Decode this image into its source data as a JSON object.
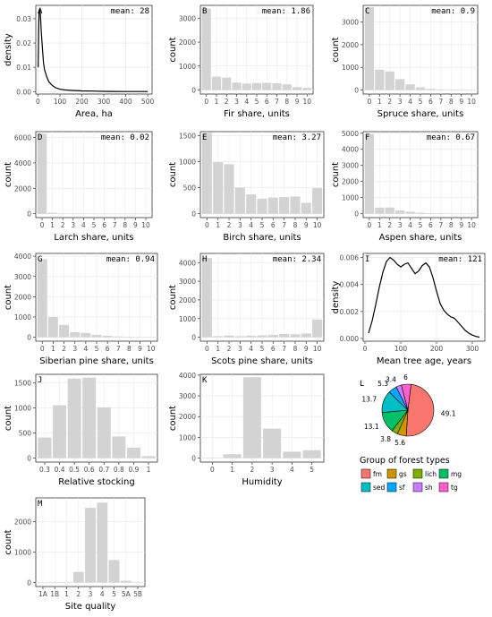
{
  "colors": {
    "bar": "#d3d3d3",
    "line": "#000000",
    "grid": "#ebebeb",
    "axis_text": "#4d4d4d",
    "pie": {
      "fm": "#f8766d",
      "gs": "#cd9600",
      "lich": "#7cae00",
      "mg": "#00be67",
      "sed": "#00bfc4",
      "sf": "#00a9ff",
      "sh": "#c77cff",
      "tg": "#ff61cc"
    }
  },
  "chart_data": [
    {
      "id": "A",
      "type": "line",
      "panel_label": "A",
      "annotation": "mean: 28",
      "xlabel": "Area, ha",
      "ylabel": "density",
      "xlim": [
        -10,
        520
      ],
      "ylim": [
        -0.001,
        0.0355
      ],
      "xticks": [
        "0",
        "100",
        "200",
        "300",
        "400",
        "500"
      ],
      "xtick_values": [
        0,
        100,
        200,
        300,
        400,
        500
      ],
      "yticks": [
        "0.00",
        "0.01",
        "0.02",
        "0.03"
      ],
      "ytick_values": [
        0,
        0.01,
        0.02,
        0.03
      ],
      "x": [
        1,
        3,
        5,
        8,
        10,
        12,
        15,
        20,
        25,
        30,
        40,
        50,
        60,
        70,
        80,
        100,
        120,
        150,
        200,
        250,
        300,
        400,
        500
      ],
      "y": [
        0.01,
        0.025,
        0.033,
        0.034,
        0.033,
        0.03,
        0.025,
        0.018,
        0.012,
        0.009,
        0.006,
        0.004,
        0.003,
        0.0022,
        0.0016,
        0.001,
        0.0007,
        0.0005,
        0.0003,
        0.0002,
        0.00012,
        5e-05,
        2e-05
      ]
    },
    {
      "id": "B",
      "type": "bar",
      "panel_label": "B",
      "annotation": "mean: 1.86",
      "xlabel": "Fir share, units",
      "ylabel": "count",
      "categories": [
        "0",
        "1",
        "2",
        "3",
        "4",
        "5",
        "6",
        "7",
        "8",
        "9",
        "10"
      ],
      "values": [
        3400,
        560,
        520,
        310,
        270,
        290,
        300,
        280,
        240,
        120,
        90
      ],
      "ylim": [
        0,
        3500
      ],
      "yticks": [
        "0",
        "1000",
        "2000",
        "3000"
      ],
      "ytick_values": [
        0,
        1000,
        2000,
        3000
      ]
    },
    {
      "id": "C",
      "type": "bar",
      "panel_label": "C",
      "annotation": "mean: 0.9",
      "xlabel": "Spruce share, units",
      "ylabel": "count",
      "categories": [
        "0",
        "1",
        "2",
        "3",
        "4",
        "5",
        "6",
        "7",
        "8",
        "9",
        "10"
      ],
      "values": [
        3650,
        900,
        820,
        480,
        250,
        120,
        50,
        25,
        15,
        10,
        5
      ],
      "ylim": [
        0,
        3700
      ],
      "yticks": [
        "0",
        "1000",
        "2000",
        "3000"
      ],
      "ytick_values": [
        0,
        1000,
        2000,
        3000
      ]
    },
    {
      "id": "D",
      "type": "bar",
      "panel_label": "D",
      "annotation": "mean: 0.02",
      "xlabel": "Larch share, units",
      "ylabel": "count",
      "categories": [
        "0",
        "1",
        "2",
        "3",
        "4",
        "5",
        "6",
        "7",
        "8",
        "9",
        "10"
      ],
      "values": [
        6300,
        80,
        20,
        10,
        5,
        3,
        2,
        1,
        1,
        1,
        1
      ],
      "ylim": [
        0,
        6400
      ],
      "yticks": [
        "0",
        "2000",
        "4000",
        "6000"
      ],
      "ytick_values": [
        0,
        2000,
        4000,
        6000
      ]
    },
    {
      "id": "E",
      "type": "bar",
      "panel_label": "E",
      "annotation": "mean: 3.27",
      "xlabel": "Birch share, units",
      "ylabel": "count",
      "categories": [
        "0",
        "1",
        "2",
        "3",
        "4",
        "5",
        "6",
        "7",
        "8",
        "9",
        "10"
      ],
      "values": [
        1550,
        990,
        950,
        500,
        370,
        290,
        310,
        320,
        330,
        210,
        490
      ],
      "ylim": [
        0,
        1560
      ],
      "yticks": [
        "0",
        "500",
        "1000",
        "1500"
      ],
      "ytick_values": [
        0,
        500,
        1000,
        1500
      ]
    },
    {
      "id": "F",
      "type": "bar",
      "panel_label": "F",
      "annotation": "mean: 0.67",
      "xlabel": "Aspen share, units",
      "ylabel": "count",
      "categories": [
        "0",
        "1",
        "2",
        "3",
        "4",
        "5",
        "6",
        "7",
        "8",
        "9",
        "10"
      ],
      "values": [
        4950,
        380,
        390,
        200,
        120,
        60,
        40,
        25,
        15,
        10,
        5
      ],
      "ylim": [
        0,
        5050
      ],
      "yticks": [
        "0",
        "1000",
        "2000",
        "3000",
        "4000",
        "5000"
      ],
      "ytick_values": [
        0,
        1000,
        2000,
        3000,
        4000,
        5000
      ]
    },
    {
      "id": "G",
      "type": "bar",
      "panel_label": "G",
      "annotation": "mean: 0.94",
      "xlabel": "Siberian pine share, units",
      "ylabel": "count",
      "categories": [
        "0",
        "1",
        "2",
        "3",
        "4",
        "5",
        "6",
        "7",
        "8",
        "9",
        "10"
      ],
      "values": [
        3850,
        1000,
        610,
        250,
        210,
        120,
        70,
        40,
        20,
        10,
        5
      ],
      "ylim": [
        0,
        4100
      ],
      "yticks": [
        "0",
        "1000",
        "2000",
        "3000",
        "4000"
      ],
      "ytick_values": [
        0,
        1000,
        2000,
        3000,
        4000
      ]
    },
    {
      "id": "H",
      "type": "bar",
      "panel_label": "H",
      "annotation": "mean: 2.34",
      "xlabel": "Scots pine share, units",
      "ylabel": "count",
      "categories": [
        "0",
        "1",
        "2",
        "3",
        "4",
        "5",
        "6",
        "7",
        "8",
        "9",
        "10"
      ],
      "values": [
        4250,
        60,
        90,
        60,
        80,
        100,
        130,
        180,
        160,
        200,
        950
      ],
      "ylim": [
        0,
        4450
      ],
      "yticks": [
        "0",
        "1000",
        "2000",
        "3000",
        "4000"
      ],
      "ytick_values": [
        0,
        1000,
        2000,
        3000,
        4000
      ]
    },
    {
      "id": "I",
      "type": "line",
      "panel_label": "I",
      "annotation": "mean: 121",
      "xlabel": "Mean tree age, years",
      "ylabel": "density",
      "xlim": [
        -5,
        335
      ],
      "ylim": [
        -0.0002,
        0.0063
      ],
      "xticks": [
        "0",
        "100",
        "200",
        "300"
      ],
      "xtick_values": [
        0,
        100,
        200,
        300
      ],
      "yticks": [
        "0.000",
        "0.002",
        "0.004",
        "0.006"
      ],
      "ytick_values": [
        0,
        0.002,
        0.004,
        0.006
      ],
      "x": [
        10,
        20,
        30,
        40,
        50,
        60,
        70,
        80,
        90,
        100,
        110,
        120,
        130,
        140,
        150,
        160,
        170,
        180,
        190,
        200,
        210,
        220,
        230,
        240,
        250,
        260,
        270,
        280,
        290,
        300,
        310,
        320
      ],
      "y": [
        0.0004,
        0.0013,
        0.0025,
        0.0038,
        0.0049,
        0.0057,
        0.006,
        0.0058,
        0.0055,
        0.0053,
        0.0055,
        0.0056,
        0.0052,
        0.0048,
        0.005,
        0.0054,
        0.0056,
        0.0053,
        0.0045,
        0.0035,
        0.0026,
        0.0021,
        0.0018,
        0.0016,
        0.0015,
        0.0012,
        0.0009,
        0.0006,
        0.0004,
        0.00025,
        0.00015,
        0.0001
      ]
    },
    {
      "id": "J",
      "type": "bar",
      "panel_label": "J",
      "xlabel": "Relative stocking",
      "ylabel": "count",
      "categories": [
        "0.3",
        "0.4",
        "0.5",
        "0.6",
        "0.7",
        "0.8",
        "0.9",
        "1"
      ],
      "values": [
        410,
        1050,
        1580,
        1600,
        1010,
        430,
        210,
        40
      ],
      "ylim": [
        0,
        1650
      ],
      "yticks": [
        "0",
        "500",
        "1000",
        "1500"
      ],
      "ytick_values": [
        0,
        500,
        1000,
        1500
      ]
    },
    {
      "id": "K",
      "type": "bar",
      "panel_label": "K",
      "xlabel": "Humidity",
      "ylabel": "count",
      "categories": [
        "0",
        "1",
        "2",
        "3",
        "4",
        "5"
      ],
      "values": [
        10,
        190,
        3900,
        1420,
        310,
        380
      ],
      "ylim": [
        0,
        4000
      ],
      "yticks": [
        "0",
        "1000",
        "2000",
        "3000",
        "4000"
      ],
      "ytick_values": [
        0,
        1000,
        2000,
        3000,
        4000
      ]
    },
    {
      "id": "L",
      "type": "pie",
      "panel_label": "L",
      "legend_title": "Group of forest types",
      "slices": [
        {
          "name": "fm",
          "value": 49.1,
          "label": "49.1"
        },
        {
          "name": "gs",
          "value": 5.6,
          "label": "5.6"
        },
        {
          "name": "lich",
          "value": 3.8,
          "label": "3.8"
        },
        {
          "name": "mg",
          "value": 13.1,
          "label": "13.1"
        },
        {
          "name": "sed",
          "value": 13.7,
          "label": "13.7"
        },
        {
          "name": "sf",
          "value": 5.3,
          "label": "5.3"
        },
        {
          "name": "sh",
          "value": 3.4,
          "label": "3.4"
        },
        {
          "name": "tg",
          "value": 6.0,
          "label": "6"
        }
      ],
      "legend_order": [
        "fm",
        "gs",
        "lich",
        "mg",
        "sed",
        "sf",
        "sh",
        "tg"
      ]
    },
    {
      "id": "M",
      "type": "bar",
      "panel_label": "M",
      "xlabel": "Site quality",
      "ylabel": "count",
      "categories": [
        "1A",
        "1B",
        "1",
        "2",
        "3",
        "4",
        "5",
        "5A",
        "5B"
      ],
      "values": [
        0,
        0,
        10,
        350,
        2450,
        2620,
        740,
        60,
        0
      ],
      "ylim": [
        0,
        2750
      ],
      "yticks": [
        "0",
        "1000",
        "2000"
      ],
      "ytick_values": [
        0,
        1000,
        2000
      ]
    }
  ]
}
